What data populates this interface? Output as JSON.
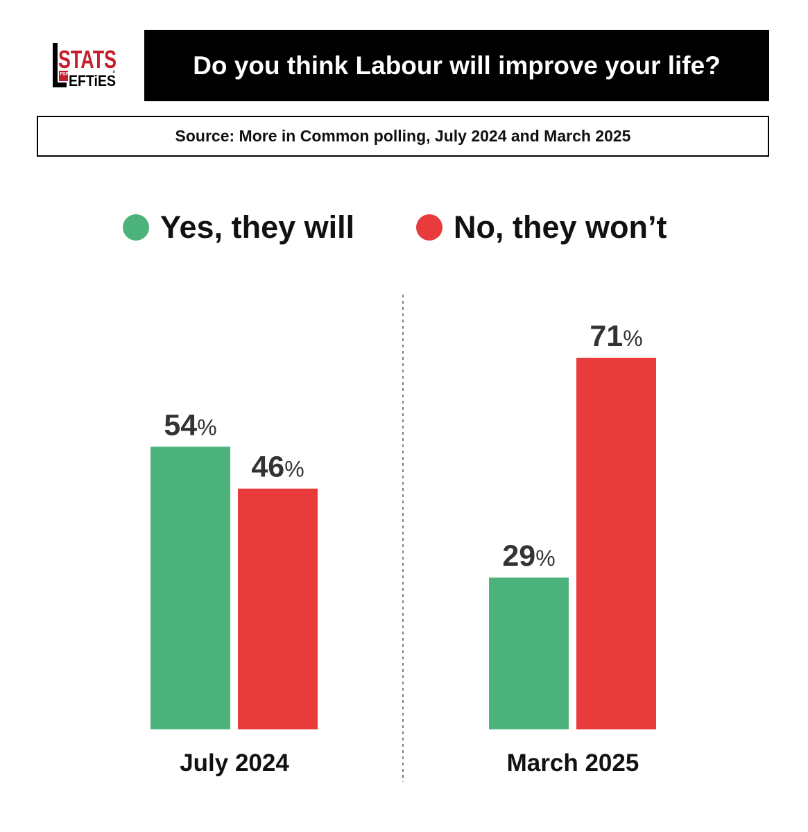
{
  "title": "Do you think Labour will improve your life?",
  "source": "Source: More in Common polling, July 2024 and March 2025",
  "logo": {
    "text": "STATS FOR LEFTIES",
    "accent": "#c41e2a"
  },
  "colors": {
    "yes": "#4bb37b",
    "no": "#e83c3c"
  },
  "chart_data": {
    "type": "bar",
    "categories": [
      "July 2024",
      "March 2025"
    ],
    "series": [
      {
        "name": "Yes, they will",
        "values": [
          54,
          29
        ],
        "color": "#4bb37b"
      },
      {
        "name": "No, they won’t",
        "values": [
          46,
          71
        ],
        "color": "#e83c3c"
      }
    ],
    "value_suffix": "%",
    "ylim": [
      0,
      100
    ],
    "grid": false,
    "legend": "top-center"
  }
}
